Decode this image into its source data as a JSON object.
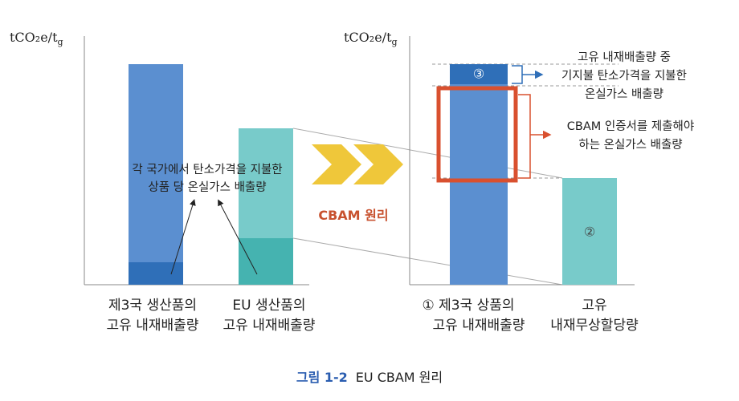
{
  "left_panel": {
    "axis_label": {
      "main": "tCO₂e/t",
      "sub": "g"
    },
    "annotation": [
      "각 국가에서 탄소가격을 지불한",
      "상품 당 온실가스 배출량"
    ],
    "bars": [
      {
        "label": [
          "제3국 생산품의",
          "고유 내재배출량"
        ]
      },
      {
        "label": [
          "EU 생산품의",
          "고유 내재배출량"
        ]
      }
    ]
  },
  "transition": {
    "label": "CBAM 원리"
  },
  "right_panel": {
    "axis_label": {
      "main": "tCO₂e/t",
      "sub": "g"
    },
    "segment_3": "③",
    "segment_2": "②",
    "bars": [
      {
        "label": [
          "① 제3국 상품의",
          "고유 내재배출량"
        ]
      },
      {
        "label": [
          "고유",
          "내재무상할당량"
        ]
      }
    ],
    "callouts": [
      {
        "text": [
          "고유 내재배출량 중",
          "기지불 탄소가격을 지불한",
          "온실가스 배출량"
        ]
      },
      {
        "text": [
          "CBAM 인증서를 제출해야",
          "하는 온실가스 배출량"
        ]
      }
    ]
  },
  "caption": {
    "number": "그림 1-2",
    "title": "EU CBAM 원리"
  }
}
